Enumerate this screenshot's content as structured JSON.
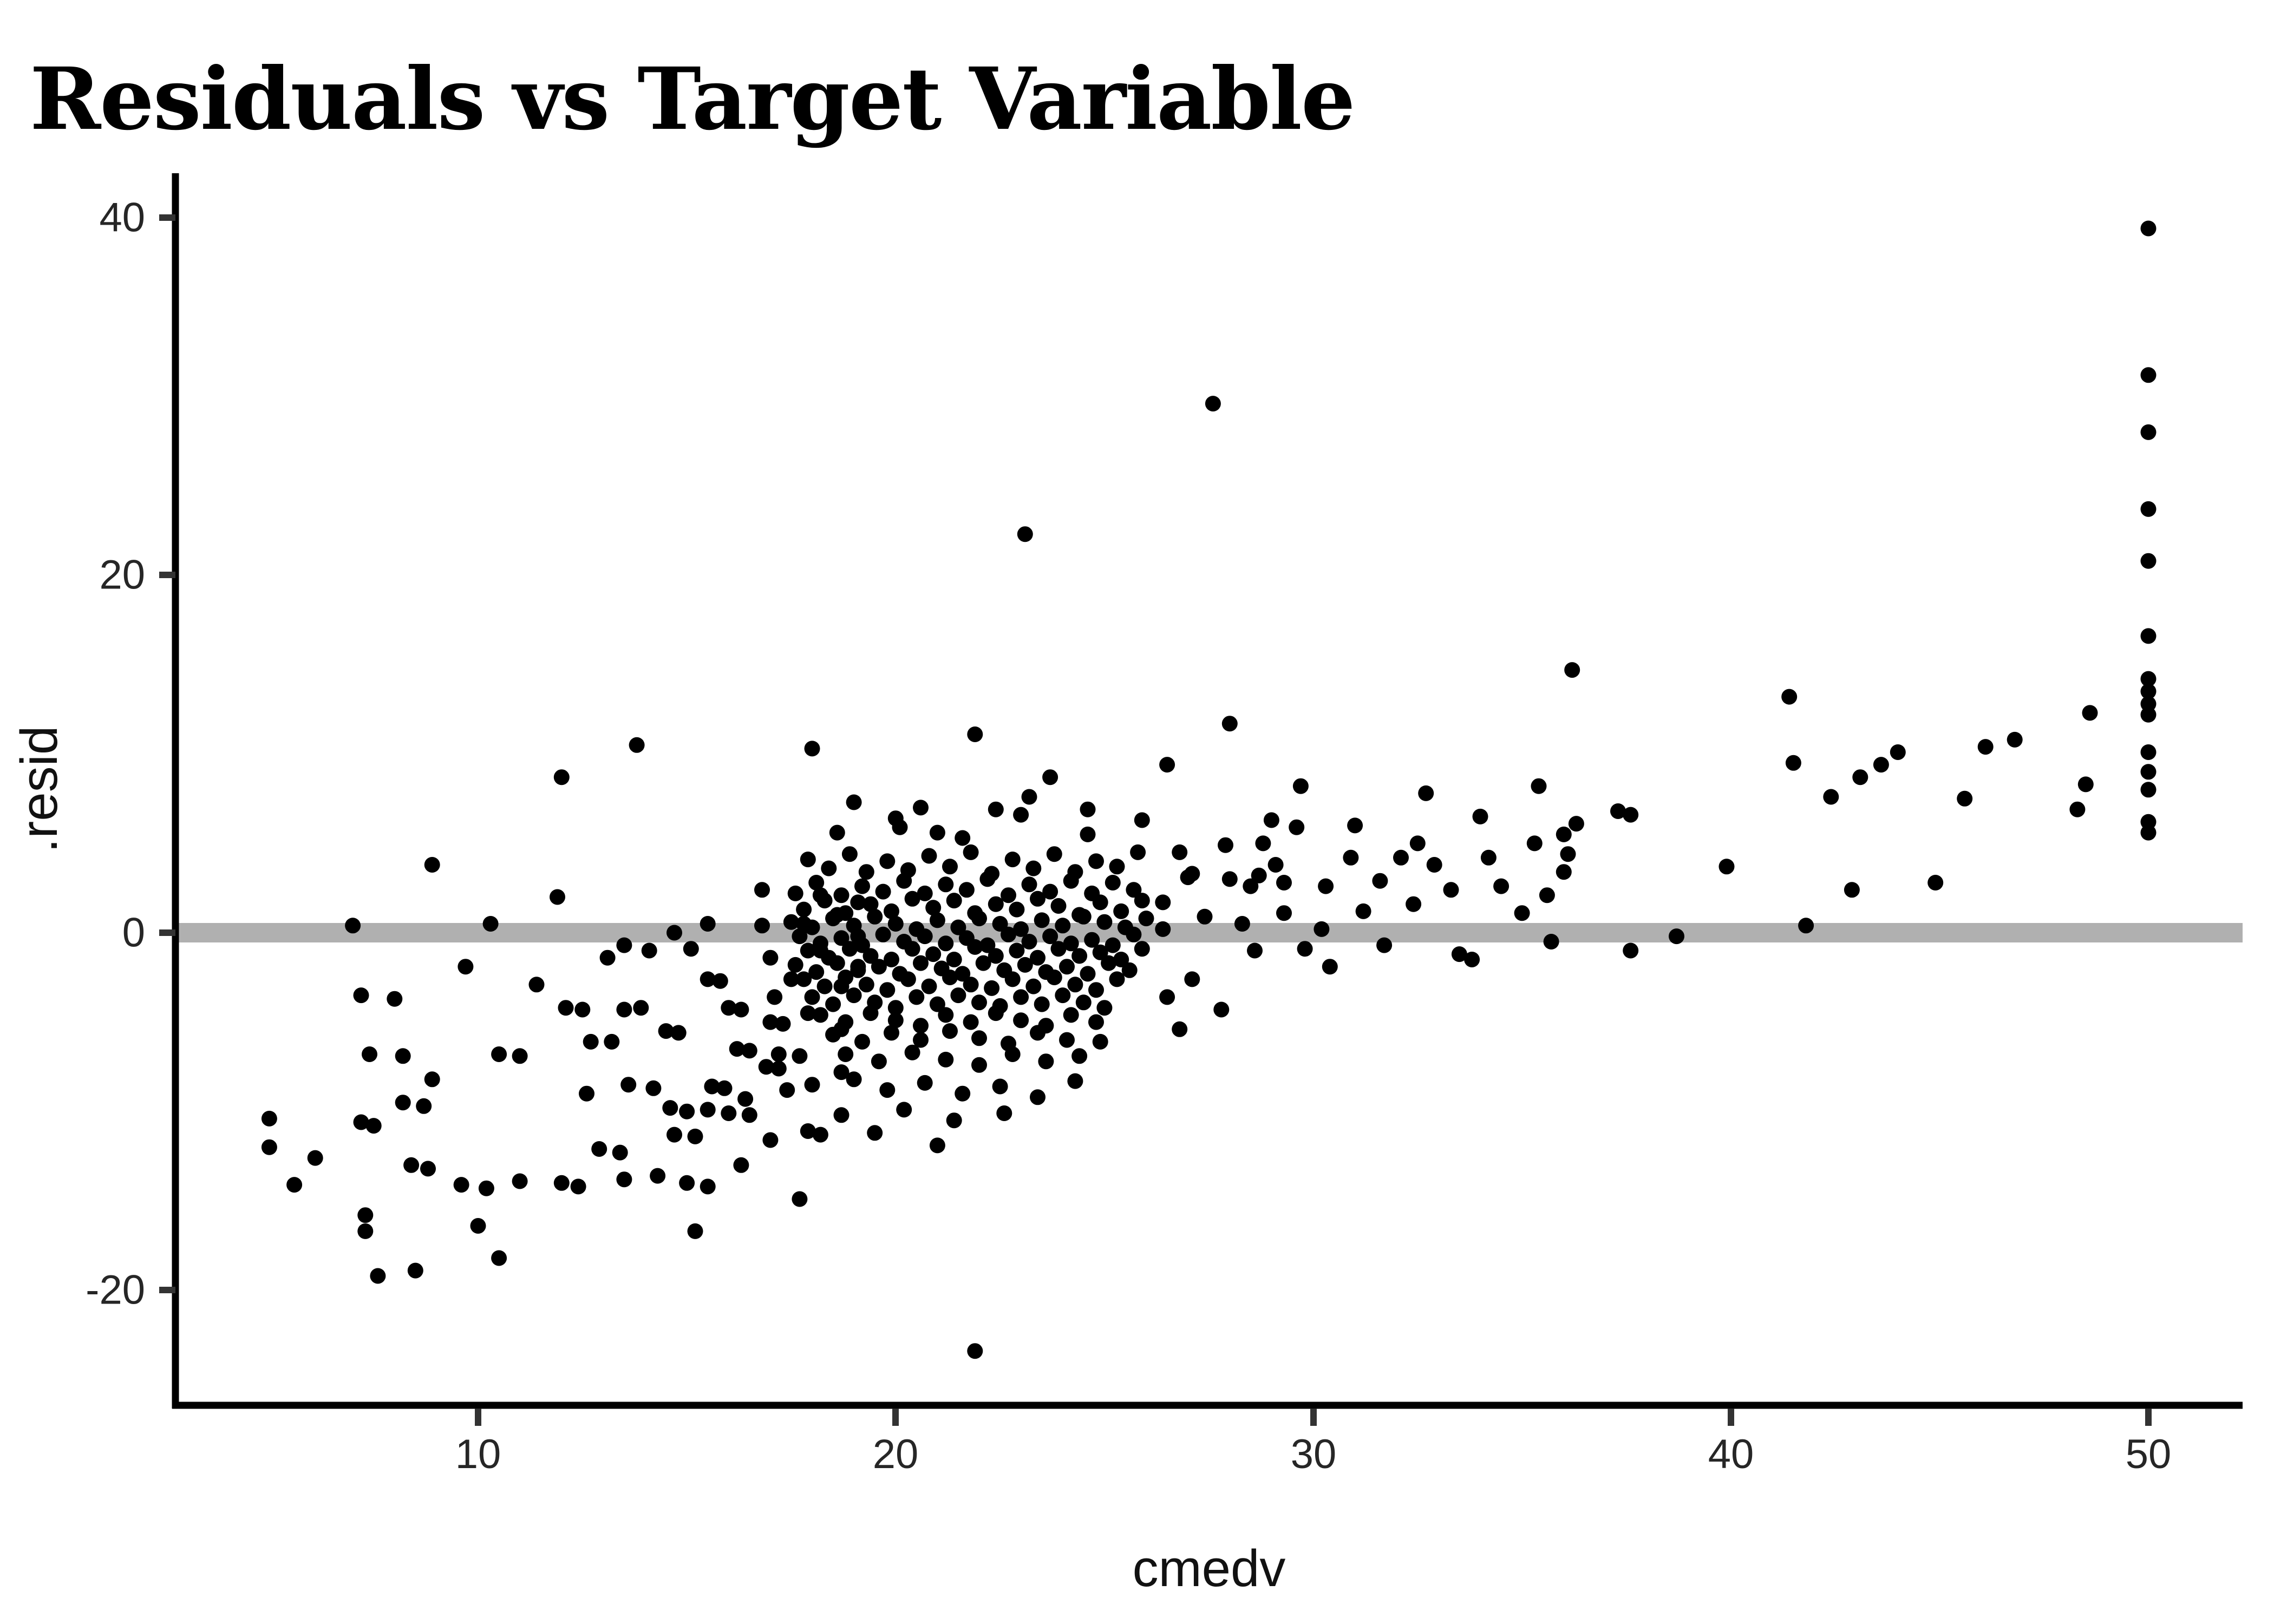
{
  "title": "Residuals vs Target Variable",
  "chart_data": {
    "type": "scatter",
    "title": "Residuals vs Target Variable",
    "xlabel": "cmedv",
    "ylabel": ".resid",
    "x_ticks": [
      10,
      20,
      30,
      40,
      50
    ],
    "y_ticks": [
      40,
      20,
      0,
      -20
    ],
    "x_tick_labels": [
      "10",
      "20",
      "30",
      "40",
      "50"
    ],
    "y_tick_labels": [
      "40",
      "20",
      "0",
      "-20"
    ],
    "xlim": [
      2.75,
      52.25
    ],
    "ylim": [
      -26.4,
      42.5
    ],
    "grid": "off",
    "legend": "none",
    "hline": {
      "y": 0,
      "color": "#b0b0b0"
    },
    "point_color": "#000000",
    "background_color": "#ffffff",
    "axis_line_color": "#000000",
    "points": [
      [
        5.0,
        -10.4
      ],
      [
        5.0,
        -12.0
      ],
      [
        5.6,
        -14.1
      ],
      [
        6.1,
        -12.6
      ],
      [
        7.0,
        0.4
      ],
      [
        7.2,
        -3.5
      ],
      [
        8.0,
        -3.7
      ],
      [
        7.4,
        -6.8
      ],
      [
        8.2,
        -6.9
      ],
      [
        7.2,
        -10.6
      ],
      [
        7.5,
        -10.8
      ],
      [
        8.2,
        -9.5
      ],
      [
        8.7,
        -9.7
      ],
      [
        7.3,
        -15.8
      ],
      [
        7.3,
        -16.7
      ],
      [
        7.6,
        -19.2
      ],
      [
        8.5,
        -18.9
      ],
      [
        8.4,
        -13.0
      ],
      [
        8.8,
        -13.2
      ],
      [
        8.9,
        3.8
      ],
      [
        9.6,
        -14.1
      ],
      [
        9.7,
        -1.9
      ],
      [
        8.9,
        -8.2
      ],
      [
        10.3,
        0.5
      ],
      [
        10.5,
        -6.8
      ],
      [
        11.0,
        -6.9
      ],
      [
        10.5,
        -18.2
      ],
      [
        10.0,
        -16.4
      ],
      [
        11.0,
        -13.9
      ],
      [
        10.2,
        -14.3
      ],
      [
        11.4,
        -2.9
      ],
      [
        11.9,
        2.0
      ],
      [
        12.0,
        8.7
      ],
      [
        12.1,
        -4.2
      ],
      [
        12.5,
        -4.3
      ],
      [
        12.7,
        -6.1
      ],
      [
        13.2,
        -6.1
      ],
      [
        13.1,
        -1.4
      ],
      [
        13.5,
        -4.3
      ],
      [
        13.9,
        -4.2
      ],
      [
        13.6,
        -8.5
      ],
      [
        14.2,
        -8.7
      ],
      [
        13.8,
        10.5
      ],
      [
        13.5,
        -13.8
      ],
      [
        14.3,
        -13.6
      ],
      [
        12.9,
        -12.1
      ],
      [
        13.4,
        -12.3
      ],
      [
        12.0,
        -14.0
      ],
      [
        12.4,
        -14.2
      ],
      [
        12.6,
        -9.0
      ],
      [
        14.5,
        -5.5
      ],
      [
        14.8,
        -5.6
      ],
      [
        14.6,
        -9.8
      ],
      [
        15.0,
        -10.0
      ],
      [
        15.6,
        -8.6
      ],
      [
        15.9,
        -8.7
      ],
      [
        15.2,
        -16.7
      ],
      [
        16.2,
        -6.5
      ],
      [
        16.5,
        -6.6
      ],
      [
        16.0,
        -4.2
      ],
      [
        16.3,
        -4.3
      ],
      [
        15.5,
        -2.6
      ],
      [
        15.8,
        -2.7
      ],
      [
        15.1,
        -0.9
      ],
      [
        17.0,
        -5.0
      ],
      [
        17.3,
        -5.1
      ],
      [
        16.9,
        -7.5
      ],
      [
        17.2,
        -7.6
      ],
      [
        17.7,
        -14.9
      ],
      [
        16.4,
        -9.3
      ],
      [
        15.0,
        -14.0
      ],
      [
        15.5,
        -14.2
      ],
      [
        14.7,
        -11.3
      ],
      [
        15.2,
        -11.4
      ],
      [
        15.5,
        -9.9
      ],
      [
        16.0,
        -10.1
      ],
      [
        16.5,
        -10.2
      ],
      [
        16.3,
        -13.0
      ],
      [
        17.9,
        -11.1
      ],
      [
        18.2,
        -11.3
      ],
      [
        18.7,
        -10.2
      ],
      [
        17.0,
        -11.6
      ],
      [
        17.4,
        -8.8
      ],
      [
        18.0,
        -8.5
      ],
      [
        18.7,
        -7.8
      ],
      [
        17.2,
        -6.8
      ],
      [
        17.7,
        -6.9
      ],
      [
        18.7,
        -5.4
      ],
      [
        17.9,
        -4.5
      ],
      [
        17.1,
        -3.6
      ],
      [
        18.7,
        -3.0
      ],
      [
        17.5,
        -2.6
      ],
      [
        19.1,
        -1.9
      ],
      [
        17.0,
        -1.4
      ],
      [
        18.2,
        -1.0
      ],
      [
        19.1,
        -0.2
      ],
      [
        16.8,
        0.4
      ],
      [
        17.8,
        0.5
      ],
      [
        18.6,
        1.0
      ],
      [
        19.1,
        1.7
      ],
      [
        18.2,
        2.1
      ],
      [
        16.8,
        2.4
      ],
      [
        14.7,
        0.0
      ],
      [
        14.1,
        -1.0
      ],
      [
        13.5,
        -0.7
      ],
      [
        15.5,
        0.5
      ],
      [
        18.0,
        10.3
      ],
      [
        17.9,
        4.1
      ],
      [
        18.4,
        3.6
      ],
      [
        18.9,
        4.4
      ],
      [
        19.3,
        3.4
      ],
      [
        19.8,
        4.0
      ],
      [
        20.3,
        3.5
      ],
      [
        20.8,
        4.3
      ],
      [
        21.3,
        3.7
      ],
      [
        21.8,
        4.5
      ],
      [
        22.3,
        3.3
      ],
      [
        22.8,
        4.1
      ],
      [
        23.3,
        3.6
      ],
      [
        23.8,
        4.4
      ],
      [
        24.3,
        3.4
      ],
      [
        24.8,
        4.0
      ],
      [
        25.3,
        3.7
      ],
      [
        25.8,
        4.5
      ],
      [
        18.6,
        5.6
      ],
      [
        20.1,
        5.9
      ],
      [
        21.6,
        5.3
      ],
      [
        24.6,
        5.5
      ],
      [
        25.9,
        6.3
      ],
      [
        17.6,
        2.2
      ],
      [
        18.1,
        2.8
      ],
      [
        18.7,
        2.1
      ],
      [
        19.2,
        2.6
      ],
      [
        19.7,
        2.3
      ],
      [
        20.2,
        2.9
      ],
      [
        20.7,
        2.2
      ],
      [
        21.2,
        2.7
      ],
      [
        21.7,
        2.4
      ],
      [
        22.2,
        3.0
      ],
      [
        22.7,
        2.1
      ],
      [
        23.2,
        2.7
      ],
      [
        23.7,
        2.3
      ],
      [
        24.2,
        2.9
      ],
      [
        24.7,
        2.2
      ],
      [
        25.2,
        2.8
      ],
      [
        25.7,
        2.4
      ],
      [
        17.8,
        1.3
      ],
      [
        18.3,
        1.8
      ],
      [
        18.8,
        1.1
      ],
      [
        19.4,
        1.6
      ],
      [
        19.9,
        1.2
      ],
      [
        20.4,
        1.9
      ],
      [
        20.9,
        1.4
      ],
      [
        21.4,
        1.8
      ],
      [
        21.9,
        1.1
      ],
      [
        22.4,
        1.6
      ],
      [
        22.9,
        1.3
      ],
      [
        23.4,
        1.9
      ],
      [
        23.9,
        1.5
      ],
      [
        24.4,
        1.0
      ],
      [
        24.9,
        1.7
      ],
      [
        25.4,
        1.2
      ],
      [
        25.9,
        1.8
      ],
      [
        17.5,
        0.6
      ],
      [
        18.0,
        0.3
      ],
      [
        18.5,
        0.8
      ],
      [
        19.0,
        0.4
      ],
      [
        19.5,
        0.9
      ],
      [
        20.0,
        0.5
      ],
      [
        20.5,
        0.2
      ],
      [
        21.0,
        0.7
      ],
      [
        21.5,
        0.3
      ],
      [
        22.0,
        0.8
      ],
      [
        22.5,
        0.5
      ],
      [
        23.0,
        0.2
      ],
      [
        23.5,
        0.7
      ],
      [
        24.0,
        0.4
      ],
      [
        24.5,
        0.9
      ],
      [
        25.0,
        0.6
      ],
      [
        25.5,
        0.3
      ],
      [
        26.0,
        0.8
      ],
      [
        17.7,
        -0.2
      ],
      [
        18.2,
        -0.6
      ],
      [
        18.7,
        -0.3
      ],
      [
        19.2,
        -0.7
      ],
      [
        19.7,
        -0.1
      ],
      [
        20.2,
        -0.5
      ],
      [
        20.7,
        -0.2
      ],
      [
        21.2,
        -0.6
      ],
      [
        21.7,
        -0.3
      ],
      [
        22.2,
        -0.7
      ],
      [
        22.7,
        -0.1
      ],
      [
        23.2,
        -0.5
      ],
      [
        23.7,
        -0.2
      ],
      [
        24.2,
        -0.6
      ],
      [
        24.7,
        -0.4
      ],
      [
        25.2,
        -0.7
      ],
      [
        25.7,
        -0.1
      ],
      [
        17.9,
        -1.0
      ],
      [
        18.4,
        -1.4
      ],
      [
        18.9,
        -0.9
      ],
      [
        19.4,
        -1.3
      ],
      [
        19.9,
        -1.5
      ],
      [
        20.4,
        -0.9
      ],
      [
        20.9,
        -1.2
      ],
      [
        21.4,
        -1.5
      ],
      [
        21.9,
        -0.8
      ],
      [
        22.4,
        -1.3
      ],
      [
        22.9,
        -1.0
      ],
      [
        23.4,
        -1.4
      ],
      [
        23.9,
        -0.9
      ],
      [
        24.4,
        -1.3
      ],
      [
        24.9,
        -1.1
      ],
      [
        25.4,
        -1.5
      ],
      [
        25.9,
        -0.9
      ],
      [
        17.6,
        -1.8
      ],
      [
        18.1,
        -2.2
      ],
      [
        18.6,
        -1.7
      ],
      [
        19.1,
        -2.1
      ],
      [
        19.6,
        -1.9
      ],
      [
        20.1,
        -2.3
      ],
      [
        20.6,
        -1.7
      ],
      [
        21.1,
        -2.0
      ],
      [
        21.6,
        -2.3
      ],
      [
        22.1,
        -1.7
      ],
      [
        22.6,
        -2.1
      ],
      [
        23.1,
        -1.8
      ],
      [
        23.6,
        -2.2
      ],
      [
        24.1,
        -1.9
      ],
      [
        24.6,
        -2.3
      ],
      [
        25.1,
        -1.7
      ],
      [
        25.6,
        -2.1
      ],
      [
        17.8,
        -2.6
      ],
      [
        18.3,
        -3.0
      ],
      [
        18.8,
        -2.5
      ],
      [
        19.3,
        -2.9
      ],
      [
        19.8,
        -3.2
      ],
      [
        20.3,
        -2.6
      ],
      [
        20.8,
        -3.0
      ],
      [
        21.3,
        -2.5
      ],
      [
        21.8,
        -2.9
      ],
      [
        22.3,
        -3.1
      ],
      [
        22.8,
        -2.6
      ],
      [
        23.3,
        -3.0
      ],
      [
        23.8,
        -2.5
      ],
      [
        24.3,
        -2.9
      ],
      [
        24.8,
        -3.2
      ],
      [
        25.3,
        -2.6
      ],
      [
        18.0,
        -3.6
      ],
      [
        18.5,
        -4.0
      ],
      [
        19.0,
        -3.5
      ],
      [
        19.5,
        -3.9
      ],
      [
        20.0,
        -4.2
      ],
      [
        20.5,
        -3.6
      ],
      [
        21.0,
        -4.0
      ],
      [
        21.5,
        -3.5
      ],
      [
        22.0,
        -3.9
      ],
      [
        22.5,
        -4.1
      ],
      [
        23.0,
        -3.6
      ],
      [
        23.5,
        -4.0
      ],
      [
        24.0,
        -3.5
      ],
      [
        24.5,
        -3.9
      ],
      [
        25.0,
        -4.2
      ],
      [
        18.2,
        -4.6
      ],
      [
        18.8,
        -5.0
      ],
      [
        19.4,
        -4.5
      ],
      [
        20.0,
        -4.9
      ],
      [
        20.6,
        -5.2
      ],
      [
        21.2,
        -4.6
      ],
      [
        21.8,
        -5.0
      ],
      [
        22.4,
        -4.5
      ],
      [
        23.0,
        -4.9
      ],
      [
        23.6,
        -5.2
      ],
      [
        24.2,
        -4.6
      ],
      [
        24.8,
        -5.0
      ],
      [
        18.5,
        -5.7
      ],
      [
        19.2,
        -6.1
      ],
      [
        19.9,
        -5.6
      ],
      [
        20.6,
        -6.0
      ],
      [
        21.3,
        -5.5
      ],
      [
        22.0,
        -5.9
      ],
      [
        22.7,
        -6.2
      ],
      [
        23.4,
        -5.6
      ],
      [
        24.1,
        -6.0
      ],
      [
        24.9,
        -6.1
      ],
      [
        18.8,
        -6.8
      ],
      [
        19.6,
        -7.2
      ],
      [
        20.4,
        -6.7
      ],
      [
        21.2,
        -7.1
      ],
      [
        22.0,
        -7.4
      ],
      [
        22.8,
        -6.8
      ],
      [
        23.6,
        -7.2
      ],
      [
        24.4,
        -6.9
      ],
      [
        19.0,
        -8.2
      ],
      [
        19.8,
        -8.8
      ],
      [
        20.7,
        -8.4
      ],
      [
        21.6,
        -9.0
      ],
      [
        22.5,
        -8.6
      ],
      [
        23.4,
        -9.2
      ],
      [
        24.3,
        -8.3
      ],
      [
        20.2,
        -9.9
      ],
      [
        21.4,
        -10.5
      ],
      [
        22.6,
        -10.1
      ],
      [
        19.5,
        -11.2
      ],
      [
        21.0,
        -11.9
      ],
      [
        21.9,
        11.1
      ],
      [
        23.7,
        8.7
      ],
      [
        26.5,
        9.4
      ],
      [
        28.0,
        11.7
      ],
      [
        27.6,
        29.6
      ],
      [
        23.1,
        22.3
      ],
      [
        21.9,
        -23.4
      ],
      [
        19.0,
        7.3
      ],
      [
        20.6,
        7.0
      ],
      [
        22.4,
        6.9
      ],
      [
        20.0,
        6.4
      ],
      [
        21.0,
        5.6
      ],
      [
        23.0,
        6.6
      ],
      [
        23.2,
        7.6
      ],
      [
        24.6,
        6.9
      ],
      [
        26.4,
        1.7
      ],
      [
        26.4,
        0.2
      ],
      [
        26.5,
        -3.6
      ],
      [
        26.8,
        4.5
      ],
      [
        26.8,
        -5.4
      ],
      [
        27.0,
        3.1
      ],
      [
        27.1,
        3.3
      ],
      [
        27.1,
        -2.6
      ],
      [
        27.4,
        0.9
      ],
      [
        27.8,
        -4.3
      ],
      [
        27.9,
        4.9
      ],
      [
        28.0,
        3.0
      ],
      [
        28.3,
        0.5
      ],
      [
        28.5,
        2.6
      ],
      [
        28.6,
        -1.0
      ],
      [
        28.7,
        3.2
      ],
      [
        28.8,
        5.0
      ],
      [
        29.1,
        3.8
      ],
      [
        29.3,
        2.8
      ],
      [
        29.3,
        1.1
      ],
      [
        29.6,
        5.9
      ],
      [
        29.8,
        -0.9
      ],
      [
        29.7,
        8.2
      ],
      [
        30.2,
        0.2
      ],
      [
        30.3,
        2.6
      ],
      [
        30.4,
        -1.9
      ],
      [
        30.9,
        4.2
      ],
      [
        31.2,
        1.2
      ],
      [
        31.6,
        2.9
      ],
      [
        31.7,
        -0.7
      ],
      [
        32.1,
        4.2
      ],
      [
        32.4,
        1.6
      ],
      [
        32.5,
        5.0
      ],
      [
        32.7,
        7.8
      ],
      [
        32.9,
        3.8
      ],
      [
        33.3,
        2.4
      ],
      [
        33.5,
        -1.2
      ],
      [
        33.8,
        -1.5
      ],
      [
        34.2,
        4.2
      ],
      [
        34.5,
        2.6
      ],
      [
        35.0,
        1.1
      ],
      [
        35.3,
        5.0
      ],
      [
        35.4,
        8.2
      ],
      [
        35.6,
        2.1
      ],
      [
        35.7,
        -0.5
      ],
      [
        29.0,
        6.3
      ],
      [
        31.0,
        6.0
      ],
      [
        34.0,
        6.5
      ],
      [
        36.2,
        14.7
      ],
      [
        36.0,
        5.5
      ],
      [
        36.1,
        4.4
      ],
      [
        36.0,
        3.4
      ],
      [
        36.3,
        6.1
      ],
      [
        37.3,
        6.8
      ],
      [
        37.6,
        6.6
      ],
      [
        37.6,
        -1.0
      ],
      [
        38.7,
        -0.2
      ],
      [
        39.9,
        3.7
      ],
      [
        41.4,
        13.2
      ],
      [
        41.5,
        9.5
      ],
      [
        41.8,
        0.4
      ],
      [
        42.4,
        7.6
      ],
      [
        42.9,
        2.4
      ],
      [
        43.1,
        8.7
      ],
      [
        43.6,
        9.4
      ],
      [
        44.0,
        10.1
      ],
      [
        44.9,
        2.8
      ],
      [
        45.6,
        7.5
      ],
      [
        46.1,
        10.4
      ],
      [
        46.8,
        10.8
      ],
      [
        48.3,
        6.9
      ],
      [
        48.5,
        8.3
      ],
      [
        48.6,
        12.3
      ],
      [
        50,
        39.4
      ],
      [
        50,
        31.2
      ],
      [
        50,
        28.0
      ],
      [
        50,
        23.7
      ],
      [
        50,
        20.8
      ],
      [
        50,
        16.6
      ],
      [
        50,
        14.2
      ],
      [
        50,
        13.5
      ],
      [
        50,
        12.8
      ],
      [
        50,
        12.2
      ],
      [
        50,
        10.1
      ],
      [
        50,
        9.0
      ],
      [
        50,
        8.0
      ],
      [
        50,
        6.2
      ],
      [
        50,
        5.6
      ]
    ]
  }
}
